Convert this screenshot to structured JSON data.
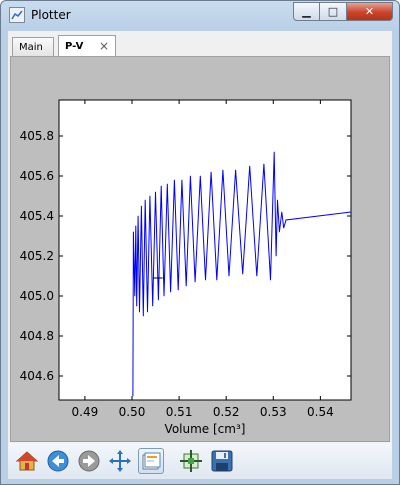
{
  "window": {
    "title": "Plotter",
    "controls": {
      "minimize": "▁",
      "maximize": "□",
      "close": "✕"
    }
  },
  "tabs": [
    {
      "label": "Main",
      "active": false
    },
    {
      "label": "P-V",
      "active": true,
      "close": "×"
    }
  ],
  "chart_data": {
    "type": "line",
    "title": "",
    "xlabel": "Volume [cm³]",
    "ylabel": "",
    "xlim": [
      0.4845,
      0.5465
    ],
    "ylim": [
      404.48,
      405.98
    ],
    "xticks": [
      "0.49",
      "0.50",
      "0.51",
      "0.52",
      "0.53",
      "0.54"
    ],
    "yticks": [
      "404.6",
      "404.8",
      "405.0",
      "405.2",
      "405.4",
      "405.6",
      "405.8"
    ],
    "grid": false,
    "series": [
      {
        "color": "#0000ff",
        "x": [
          0.5002,
          0.5003,
          0.5006,
          0.5008,
          0.501,
          0.5013,
          0.5016,
          0.502,
          0.5024,
          0.5028,
          0.5033,
          0.5038,
          0.5044,
          0.505,
          0.5056,
          0.5062,
          0.5068,
          0.5075,
          0.5082,
          0.509,
          0.5098,
          0.5106,
          0.5115,
          0.5124,
          0.5134,
          0.5145,
          0.5156,
          0.5168,
          0.518,
          0.5193,
          0.5206,
          0.522,
          0.5235,
          0.525,
          0.5265,
          0.528,
          0.5294,
          0.5302,
          0.5306,
          0.5309,
          0.5313,
          0.5318,
          0.5322,
          0.5327,
          0.5465
        ],
        "y": [
          404.5,
          405.32,
          405.0,
          405.35,
          404.95,
          405.4,
          404.92,
          405.45,
          404.9,
          405.48,
          404.92,
          405.5,
          404.95,
          405.52,
          404.98,
          405.55,
          405.0,
          405.56,
          405.02,
          405.58,
          405.03,
          405.58,
          405.05,
          405.6,
          405.07,
          405.6,
          405.08,
          405.62,
          405.08,
          405.63,
          405.1,
          405.63,
          405.11,
          405.65,
          405.1,
          405.66,
          405.08,
          405.72,
          405.2,
          405.48,
          405.32,
          405.42,
          405.34,
          405.38,
          405.42
        ]
      }
    ],
    "flat_segment": {
      "x": [
        0.5045,
        0.5065
      ],
      "y": 405.09
    }
  },
  "toolbar": {
    "buttons": [
      {
        "name": "home-icon",
        "active": false
      },
      {
        "name": "back-icon",
        "active": false
      },
      {
        "name": "forward-icon",
        "active": false
      },
      {
        "name": "pan-icon",
        "active": false
      },
      {
        "name": "zoom-icon",
        "active": true
      },
      {
        "name": "configure-subplots-icon",
        "active": false
      },
      {
        "name": "save-icon",
        "active": false
      }
    ]
  },
  "colors": {
    "panel_bg": "#bebebe",
    "plot_bg": "#ffffff",
    "line": "#0000ff"
  }
}
